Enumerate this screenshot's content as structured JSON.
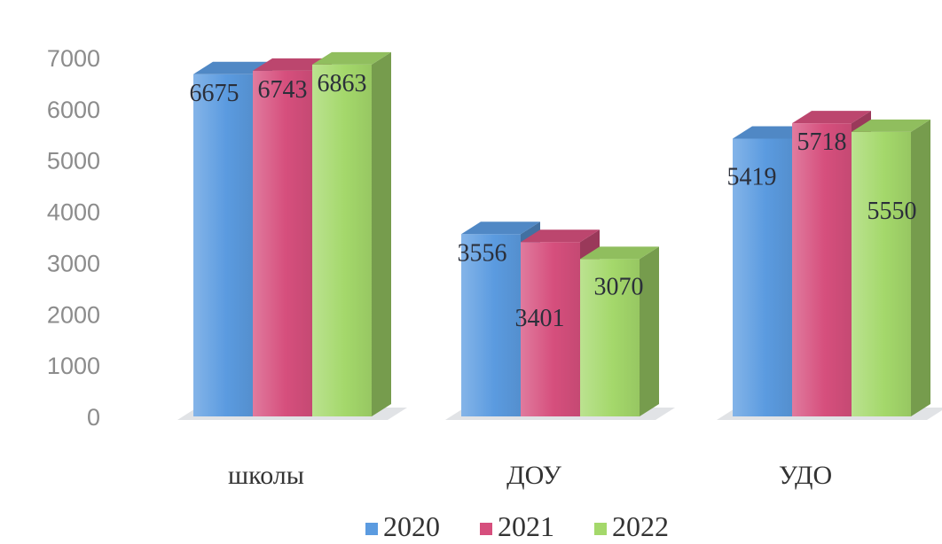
{
  "chart_data": {
    "type": "bar",
    "categories": [
      "школы",
      "ДОУ",
      "УДО"
    ],
    "series": [
      {
        "name": "2020",
        "values": [
          6675,
          3556,
          5419
        ],
        "color": "#5b9be0"
      },
      {
        "name": "2021",
        "values": [
          6743,
          3401,
          5718
        ],
        "color": "#d64f7d"
      },
      {
        "name": "2022",
        "values": [
          6863,
          3070,
          5550
        ],
        "color": "#a4d86b"
      }
    ],
    "yticks": [
      "0",
      "1000",
      "2000",
      "3000",
      "4000",
      "5000",
      "6000",
      "7000"
    ],
    "ylim": [
      0,
      7000
    ],
    "title": "",
    "xlabel": "",
    "ylabel": "",
    "legend_position": "bottom",
    "grid": false,
    "style": "3d-column"
  }
}
